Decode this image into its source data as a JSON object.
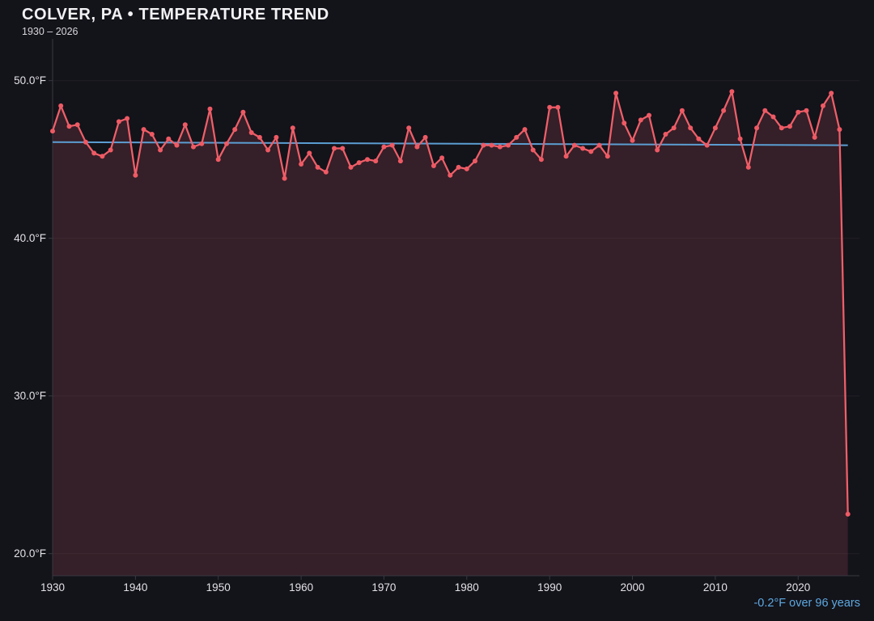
{
  "header": {
    "title": "COLVER, PA • TEMPERATURE TREND",
    "subtitle": "1930 – 2026"
  },
  "annotation": {
    "trend_label": "-0.2°F over 96 years"
  },
  "chart_data": {
    "type": "line",
    "title": "COLVER, PA • TEMPERATURE TREND",
    "subtitle": "1930 – 2026",
    "xlabel": "",
    "ylabel": "",
    "grid": "horizontal-only",
    "legend": "none",
    "xlim": [
      1930,
      2027.4
    ],
    "ylim": [
      18.6,
      52.65
    ],
    "yticks": [
      {
        "value": 50,
        "label": "50.0°F"
      },
      {
        "value": 40,
        "label": "40.0°F"
      },
      {
        "value": 30,
        "label": "30.0°F"
      },
      {
        "value": 20,
        "label": "20.0°F"
      }
    ],
    "xticks": [
      {
        "value": 1930,
        "label": "1930"
      },
      {
        "value": 1940,
        "label": "1940"
      },
      {
        "value": 1950,
        "label": "1950"
      },
      {
        "value": 1960,
        "label": "1960"
      },
      {
        "value": 1970,
        "label": "1970"
      },
      {
        "value": 1980,
        "label": "1980"
      },
      {
        "value": 1990,
        "label": "1990"
      },
      {
        "value": 2000,
        "label": "2000"
      },
      {
        "value": 2010,
        "label": "2010"
      },
      {
        "value": 2020,
        "label": "2020"
      }
    ],
    "x": [
      1930,
      1931,
      1932,
      1933,
      1934,
      1935,
      1936,
      1937,
      1938,
      1939,
      1940,
      1941,
      1942,
      1943,
      1944,
      1945,
      1946,
      1947,
      1948,
      1949,
      1950,
      1951,
      1952,
      1953,
      1954,
      1955,
      1956,
      1957,
      1958,
      1959,
      1960,
      1961,
      1962,
      1963,
      1964,
      1965,
      1966,
      1967,
      1968,
      1969,
      1970,
      1971,
      1972,
      1973,
      1974,
      1975,
      1976,
      1977,
      1978,
      1979,
      1980,
      1981,
      1982,
      1983,
      1984,
      1985,
      1986,
      1987,
      1988,
      1989,
      1990,
      1991,
      1992,
      1993,
      1994,
      1995,
      1996,
      1997,
      1998,
      1999,
      2000,
      2001,
      2002,
      2003,
      2004,
      2005,
      2006,
      2007,
      2008,
      2009,
      2010,
      2011,
      2012,
      2013,
      2014,
      2015,
      2016,
      2017,
      2018,
      2019,
      2020,
      2021,
      2022,
      2023,
      2024,
      2025,
      2026
    ],
    "series": [
      {
        "name": "annual-mean-temperature-F",
        "values": [
          46.8,
          48.4,
          47.1,
          47.2,
          46.1,
          45.4,
          45.2,
          45.6,
          47.4,
          47.6,
          44.0,
          46.9,
          46.6,
          45.6,
          46.3,
          45.9,
          47.2,
          45.8,
          46.0,
          48.2,
          45.0,
          46.0,
          46.9,
          48.0,
          46.7,
          46.4,
          45.6,
          46.4,
          43.8,
          47.0,
          44.7,
          45.4,
          44.5,
          44.2,
          45.7,
          45.7,
          44.5,
          44.8,
          45.0,
          44.9,
          45.8,
          45.9,
          44.9,
          47.0,
          45.8,
          46.4,
          44.6,
          45.1,
          44.0,
          44.5,
          44.4,
          44.9,
          45.9,
          45.9,
          45.8,
          45.9,
          46.4,
          46.9,
          45.6,
          45.0,
          48.3,
          48.3,
          45.2,
          45.9,
          45.7,
          45.5,
          45.9,
          45.2,
          49.2,
          47.3,
          46.2,
          47.5,
          47.8,
          45.6,
          46.6,
          47.0,
          48.1,
          47.0,
          46.3,
          45.9,
          47.0,
          48.1,
          49.3,
          46.3,
          44.5,
          47.0,
          48.1,
          47.7,
          47.0,
          47.1,
          48.0,
          48.1,
          46.4,
          48.4,
          49.2,
          46.9,
          22.5
        ]
      }
    ],
    "trend": {
      "start_year": 1930,
      "end_year": 2026,
      "start_value": 46.1,
      "end_value": 45.9,
      "change_label": "-0.2°F over 96 years"
    },
    "colors": {
      "background": "#13131a",
      "line": "#ef5f69",
      "point": "#ee5a64",
      "area_fill": "#351f28",
      "trend_line": "#5b9ed2",
      "annotation_text": "#5da9e0",
      "grid": "rgba(255,255,255,0.05)",
      "axis": "#383842",
      "tick_label": "#e2e2e6",
      "title_text": "#f2f2f4"
    }
  }
}
